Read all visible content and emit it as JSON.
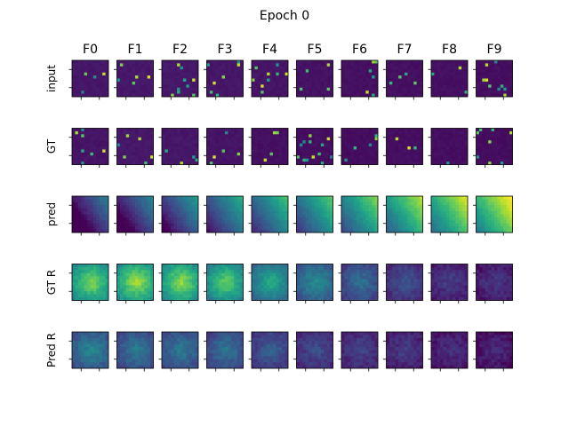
{
  "chart_data": {
    "type": "heatmap",
    "title": "Epoch 0",
    "colormap": "viridis",
    "columns": [
      "F0",
      "F1",
      "F2",
      "F3",
      "F4",
      "F5",
      "F6",
      "F7",
      "F8",
      "F9"
    ],
    "rows": [
      "input",
      "GT",
      "pred",
      "GT R",
      "Pred R"
    ],
    "intensity_scale": [
      0,
      1
    ],
    "mean_intensity": [
      [
        0.1,
        0.11,
        0.11,
        0.1,
        0.09,
        0.07,
        0.06,
        0.06,
        0.06,
        0.05
      ],
      [
        0.09,
        0.11,
        0.1,
        0.09,
        0.06,
        0.05,
        0.04,
        0.05,
        0.05,
        0.04
      ],
      [
        0.12,
        0.16,
        0.25,
        0.33,
        0.4,
        0.45,
        0.52,
        0.6,
        0.66,
        0.72
      ],
      [
        0.62,
        0.66,
        0.64,
        0.58,
        0.46,
        0.36,
        0.27,
        0.18,
        0.12,
        0.1
      ],
      [
        0.34,
        0.3,
        0.3,
        0.28,
        0.22,
        0.17,
        0.14,
        0.12,
        0.09,
        0.07
      ]
    ]
  }
}
